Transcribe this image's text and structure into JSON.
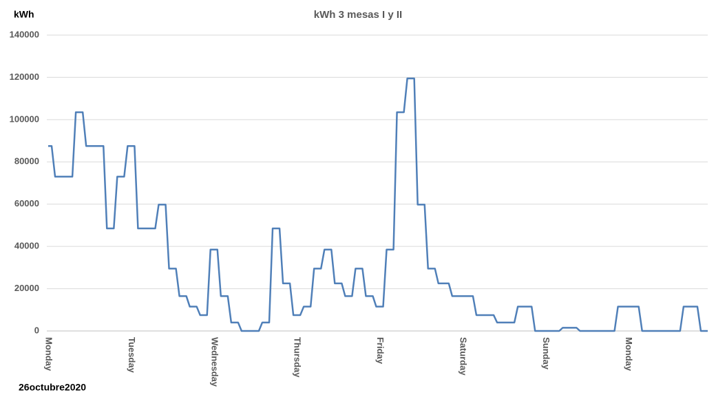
{
  "chart_data": {
    "type": "line",
    "title": "kWh 3 mesas I y II",
    "y_label": "kWh",
    "note": "26octubre2020",
    "categories": [
      "Monday",
      null,
      null,
      null,
      null,
      null,
      null,
      null,
      null,
      null,
      null,
      null,
      null,
      null,
      null,
      null,
      null,
      null,
      null,
      null,
      null,
      null,
      null,
      null,
      "Tuesday",
      null,
      null,
      null,
      null,
      null,
      null,
      null,
      null,
      null,
      null,
      null,
      null,
      null,
      null,
      null,
      null,
      null,
      null,
      null,
      null,
      null,
      null,
      null,
      "Wednesday",
      null,
      null,
      null,
      null,
      null,
      null,
      null,
      null,
      null,
      null,
      null,
      null,
      null,
      null,
      null,
      null,
      null,
      null,
      null,
      null,
      null,
      null,
      null,
      "Thursday",
      null,
      null,
      null,
      null,
      null,
      null,
      null,
      null,
      null,
      null,
      null,
      null,
      null,
      null,
      null,
      null,
      null,
      null,
      null,
      null,
      null,
      null,
      null,
      "Friday",
      null,
      null,
      null,
      null,
      null,
      null,
      null,
      null,
      null,
      null,
      null,
      null,
      null,
      null,
      null,
      null,
      null,
      null,
      null,
      null,
      null,
      null,
      null,
      "Saturday",
      null,
      null,
      null,
      null,
      null,
      null,
      null,
      null,
      null,
      null,
      null,
      null,
      null,
      null,
      null,
      null,
      null,
      null,
      null,
      null,
      null,
      null,
      null,
      "Sunday",
      null,
      null,
      null,
      null,
      null,
      null,
      null,
      null,
      null,
      null,
      null,
      null,
      null,
      null,
      null,
      null,
      null,
      null,
      null,
      null,
      null,
      null,
      null,
      "Monday",
      null,
      null,
      null,
      null,
      null,
      null,
      null,
      null,
      null,
      null,
      null,
      null,
      null,
      null,
      null,
      null,
      null,
      null,
      null,
      null,
      null,
      null,
      null
    ],
    "values": [
      87500,
      87500,
      73000,
      73000,
      73000,
      73000,
      73000,
      73000,
      103500,
      103500,
      103500,
      87500,
      87500,
      87500,
      87500,
      87500,
      87500,
      48500,
      48500,
      48500,
      73000,
      73000,
      73000,
      87500,
      87500,
      87500,
      48500,
      48500,
      48500,
      48500,
      48500,
      48500,
      59800,
      59800,
      59800,
      29500,
      29500,
      29500,
      16500,
      16500,
      16500,
      11500,
      11500,
      11500,
      7500,
      7500,
      7500,
      38500,
      38500,
      38500,
      16500,
      16500,
      16500,
      4000,
      4000,
      4000,
      0,
      0,
      0,
      0,
      0,
      0,
      4000,
      4000,
      4000,
      48500,
      48500,
      48500,
      22500,
      22500,
      22500,
      7500,
      7500,
      7500,
      11500,
      11500,
      11500,
      29500,
      29500,
      29500,
      38500,
      38500,
      38500,
      22500,
      22500,
      22500,
      16500,
      16500,
      16500,
      29500,
      29500,
      29500,
      16500,
      16500,
      16500,
      11500,
      11500,
      11500,
      38500,
      38500,
      38500,
      103500,
      103500,
      103500,
      119500,
      119500,
      119500,
      59800,
      59800,
      59800,
      29500,
      29500,
      29500,
      22500,
      22500,
      22500,
      22500,
      16500,
      16500,
      16500,
      16500,
      16500,
      16500,
      16500,
      7500,
      7500,
      7500,
      7500,
      7500,
      7500,
      4000,
      4000,
      4000,
      4000,
      4000,
      4000,
      11500,
      11500,
      11500,
      11500,
      11500,
      0,
      0,
      0,
      0,
      0,
      0,
      0,
      0,
      1500,
      1500,
      1500,
      1500,
      1500,
      0,
      0,
      0,
      0,
      0,
      0,
      0,
      0,
      0,
      0,
      0,
      11500,
      11500,
      11500,
      11500,
      11500,
      11500,
      11500,
      0,
      0,
      0,
      0,
      0,
      0,
      0,
      0,
      0,
      0,
      0,
      0,
      11500,
      11500,
      11500,
      11500,
      11500,
      0,
      0,
      0
    ],
    "color": "#4f7fb8",
    "ylim": [
      0,
      140000
    ],
    "yticks": [
      0,
      20000,
      40000,
      60000,
      80000,
      100000,
      120000,
      140000
    ],
    "grid": true
  }
}
